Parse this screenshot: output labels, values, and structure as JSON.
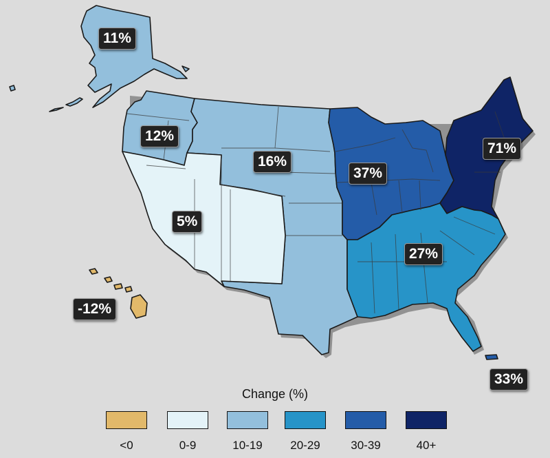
{
  "legend": {
    "title": "Change (%)",
    "items": [
      {
        "label": "<0",
        "color": "#e2b96a"
      },
      {
        "label": "0-9",
        "color": "#e4f3f8"
      },
      {
        "label": "10-19",
        "color": "#93bfdc"
      },
      {
        "label": "20-29",
        "color": "#2794c8"
      },
      {
        "label": "30-39",
        "color": "#245ca8"
      },
      {
        "label": "40+",
        "color": "#0f2466"
      }
    ]
  },
  "regions": [
    {
      "id": "alaska",
      "value": "11%",
      "category": "10-19"
    },
    {
      "id": "northwest",
      "value": "12%",
      "category": "10-19"
    },
    {
      "id": "great-plains",
      "value": "16%",
      "category": "10-19"
    },
    {
      "id": "southwest",
      "value": "5%",
      "category": "0-9"
    },
    {
      "id": "midwest",
      "value": "37%",
      "category": "30-39"
    },
    {
      "id": "northeast",
      "value": "71%",
      "category": "40+"
    },
    {
      "id": "southeast",
      "value": "27%",
      "category": "20-29"
    },
    {
      "id": "hawaii",
      "value": "-12%",
      "category": "<0"
    },
    {
      "id": "puerto-rico",
      "value": "33%",
      "category": "30-39"
    }
  ]
}
